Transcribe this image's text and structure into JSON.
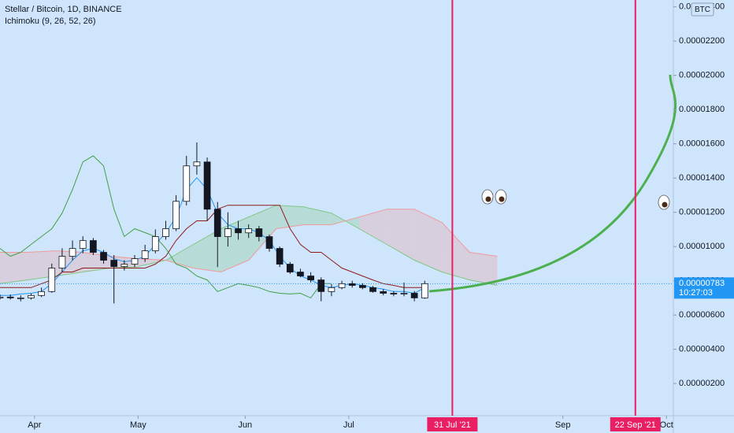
{
  "chart_data": {
    "type": "candlestick",
    "title": "Stellar / Bitcoin, 1D, BINANCE",
    "indicator": "Ichimoku (9, 26, 52, 26)",
    "currency": "BTC",
    "up_color": "#ffffff",
    "down_color": "#131722",
    "xlim": [
      "2021-03-22",
      "2021-10-03"
    ],
    "ylim": [
      1.2e-07,
      2.44e-05
    ],
    "xticks": [
      {
        "value": "2021-04-01",
        "label": "Apr"
      },
      {
        "value": "2021-05-01",
        "label": "May"
      },
      {
        "value": "2021-06-01",
        "label": "Jun"
      },
      {
        "value": "2021-07-01",
        "label": "Jul"
      },
      {
        "value": "2021-09-01",
        "label": "Sep"
      },
      {
        "value": "2021-10-01",
        "label": "Oct"
      }
    ],
    "yticks": [
      {
        "value": 2e-06,
        "label": "0.00000200"
      },
      {
        "value": 4e-06,
        "label": "0.00000400"
      },
      {
        "value": 6e-06,
        "label": "0.00000600"
      },
      {
        "value": 8e-06,
        "label": "0.00000800"
      },
      {
        "value": 1e-05,
        "label": "0.00001000"
      },
      {
        "value": 1.2e-05,
        "label": "0.00001200"
      },
      {
        "value": 1.4e-05,
        "label": "0.00001400"
      },
      {
        "value": 1.6e-05,
        "label": "0.00001600"
      },
      {
        "value": 1.8e-05,
        "label": "0.00001800"
      },
      {
        "value": 2e-05,
        "label": "0.00002000"
      },
      {
        "value": 2.2e-05,
        "label": "0.00002200"
      },
      {
        "value": 2.4e-05,
        "label": "0.00002400"
      }
    ],
    "markers": [
      {
        "value": "2021-07-31",
        "label": "31 Jul '21",
        "color": "#e91e63"
      },
      {
        "value": "2021-09-22",
        "label": "22 Sep '21",
        "color": "#e91e63"
      }
    ],
    "last_price": {
      "value": 7.83e-06,
      "label": "0.00000783"
    },
    "countdown": "10:27:03",
    "x": [
      "2021-03-22",
      "2021-03-25",
      "2021-03-28",
      "2021-03-31",
      "2021-04-03",
      "2021-04-06",
      "2021-04-09",
      "2021-04-12",
      "2021-04-15",
      "2021-04-18",
      "2021-04-21",
      "2021-04-24",
      "2021-04-27",
      "2021-04-30",
      "2021-05-03",
      "2021-05-06",
      "2021-05-09",
      "2021-05-12",
      "2021-05-15",
      "2021-05-18",
      "2021-05-21",
      "2021-05-24",
      "2021-05-27",
      "2021-05-30",
      "2021-06-02",
      "2021-06-05",
      "2021-06-08",
      "2021-06-11",
      "2021-06-14",
      "2021-06-17",
      "2021-06-20",
      "2021-06-23",
      "2021-06-26",
      "2021-06-29",
      "2021-07-02",
      "2021-07-05",
      "2021-07-08",
      "2021-07-11",
      "2021-07-14",
      "2021-07-17",
      "2021-07-20",
      "2021-07-23"
    ],
    "open": [
      7e-06,
      7.05e-06,
      7e-06,
      7e-06,
      7.14e-06,
      7.37e-06,
      8.74e-06,
      9.43e-06,
      9.89e-06,
      1.035e-05,
      9.66e-06,
      9.2e-06,
      8.83e-06,
      8.97e-06,
      9.29e-06,
      9.75e-06,
      1.058e-05,
      1.104e-05,
      1.264e-05,
      1.471e-05,
      1.494e-05,
      1.218e-05,
      1.058e-05,
      1.104e-05,
      1.08e-05,
      1.104e-05,
      1.058e-05,
      9.89e-06,
      8.97e-06,
      8.51e-06,
      8.28e-06,
      8.05e-06,
      7.37e-06,
      7.6e-06,
      7.83e-06,
      7.73e-06,
      7.6e-06,
      7.37e-06,
      7.27e-06,
      7.23e-06,
      7.27e-06,
      7e-06
    ],
    "high": [
      7.2e-06,
      7.2e-06,
      7.15e-06,
      7.25e-06,
      7.6e-06,
      9e-06,
      9.9e-06,
      1.035e-05,
      1.06e-05,
      1.05e-05,
      9.8e-06,
      9.5e-06,
      9.2e-06,
      9.5e-06,
      1.01e-05,
      1.1e-05,
      1.15e-05,
      1.3e-05,
      1.53e-05,
      1.608e-05,
      1.52e-05,
      1.26e-05,
      1.2e-05,
      1.15e-05,
      1.13e-05,
      1.12e-05,
      1.07e-05,
      1e-05,
      9.1e-06,
      8.7e-06,
      8.5e-06,
      8.2e-06,
      7.8e-06,
      8e-06,
      8e-06,
      7.85e-06,
      7.7e-06,
      7.5e-06,
      7.4e-06,
      7.9e-06,
      7.4e-06,
      8e-06
    ],
    "low": [
      6.9e-06,
      6.9e-06,
      6.8e-06,
      6.9e-06,
      7.05e-06,
      7.3e-06,
      8.5e-06,
      9.2e-06,
      9.6e-06,
      9.5e-06,
      9e-06,
      6.68e-06,
      8.6e-06,
      8.8e-06,
      9.1e-06,
      9.6e-06,
      1.04e-05,
      1.09e-05,
      1.24e-05,
      1.42e-05,
      1.15e-05,
      8.8e-06,
      1e-05,
      1.04e-05,
      1.05e-05,
      1.03e-05,
      9.7e-06,
      8.8e-06,
      8.4e-06,
      8.2e-06,
      7.9e-06,
      6.8e-06,
      7.1e-06,
      7.5e-06,
      7.6e-06,
      7.5e-06,
      7.3e-06,
      7.15e-06,
      7.1e-06,
      7.1e-06,
      6.8e-06,
      6.95e-06
    ],
    "close": [
      7.05e-06,
      7e-06,
      7e-06,
      7.14e-06,
      7.37e-06,
      8.74e-06,
      9.43e-06,
      9.89e-06,
      1.035e-05,
      9.66e-06,
      9.2e-06,
      8.83e-06,
      8.97e-06,
      9.29e-06,
      9.75e-06,
      1.058e-05,
      1.104e-05,
      1.264e-05,
      1.471e-05,
      1.494e-05,
      1.218e-05,
      1.058e-05,
      1.104e-05,
      1.08e-05,
      1.104e-05,
      1.058e-05,
      9.89e-06,
      8.97e-06,
      8.51e-06,
      8.28e-06,
      8.05e-06,
      7.37e-06,
      7.6e-06,
      7.83e-06,
      7.73e-06,
      7.6e-06,
      7.37e-06,
      7.27e-06,
      7.23e-06,
      7.27e-06,
      7e-06,
      7.83e-06
    ],
    "series": [
      {
        "color": "#2196f3",
        "values": [
          7.14e-06,
          7.14e-06,
          7.23e-06,
          7.27e-06,
          7.37e-06,
          7.83e-06,
          8.51e-06,
          9.2e-06,
          9.75e-06,
          9.89e-06,
          9.66e-06,
          9.29e-06,
          9.11e-06,
          9.2e-06,
          9.43e-06,
          1.012e-05,
          1.081e-05,
          1.172e-05,
          1.333e-05,
          1.402e-05,
          1.333e-05,
          1.195e-05,
          1.127e-05,
          1.104e-05,
          1.104e-05,
          1.081e-05,
          1.035e-05,
          9.43e-06,
          8.74e-06,
          8.28e-06,
          8.05e-06,
          7.73e-06,
          7.6e-06,
          7.73e-06,
          7.83e-06,
          7.73e-06,
          7.6e-06,
          7.51e-06,
          7.37e-06,
          7.37e-06,
          7.27e-06,
          7.6e-06
        ]
      },
      {
        "color": "#8e1b1b",
        "values": [
          7.6e-06,
          7.6e-06,
          7.6e-06,
          7.6e-06,
          7.83e-06,
          8.05e-06,
          8.51e-06,
          8.51e-06,
          8.74e-06,
          8.74e-06,
          8.74e-06,
          8.74e-06,
          8.74e-06,
          8.74e-06,
          8.74e-06,
          8.97e-06,
          9.43e-06,
          1.035e-05,
          1.104e-05,
          1.15e-05,
          1.15e-05,
          1.218e-05,
          1.241e-05,
          1.241e-05,
          1.241e-05,
          1.241e-05,
          1.241e-05,
          1.241e-05,
          1.104e-05,
          1.012e-05,
          9.66e-06,
          9.66e-06,
          9.2e-06,
          8.74e-06,
          8.51e-06,
          8.28e-06,
          8.05e-06,
          7.83e-06,
          7.73e-06,
          7.6e-06,
          7.6e-06,
          7.6e-06
        ]
      },
      {
        "color": "#43a047",
        "values": [
          9.89e-06,
          9.43e-06,
          9.66e-06,
          1.012e-05,
          1.058e-05,
          1.104e-05,
          1.195e-05,
          1.333e-05,
          1.494e-05,
          1.53e-05,
          1.471e-05,
          1.218e-05,
          1.058e-05,
          1.104e-05,
          1.081e-05,
          1.058e-05,
          9.89e-06,
          8.97e-06,
          8.74e-06,
          8.28e-06,
          8.05e-06,
          7.37e-06,
          7.6e-06,
          7.83e-06,
          7.73e-06,
          7.6e-06,
          7.37e-06,
          7.27e-06,
          7.23e-06,
          7.27e-06,
          7e-06,
          7.83e-06,
          7.83e-06,
          null,
          null,
          null,
          null,
          null,
          null,
          null,
          null,
          null
        ]
      }
    ],
    "cloud": {
      "x": [
        "2021-03-22",
        "2021-03-30",
        "2021-04-07",
        "2021-04-15",
        "2021-04-23",
        "2021-05-01",
        "2021-05-09",
        "2021-05-17",
        "2021-05-25",
        "2021-06-02",
        "2021-06-10",
        "2021-06-18",
        "2021-06-26",
        "2021-07-04",
        "2021-07-12",
        "2021-07-20",
        "2021-07-28",
        "2021-08-05",
        "2021-08-13"
      ],
      "lead_a": [
        7.83e-06,
        8.05e-06,
        8.28e-06,
        8.51e-06,
        8.74e-06,
        8.83e-06,
        9.2e-06,
        1.012e-05,
        1.104e-05,
        1.172e-05,
        1.241e-05,
        1.232e-05,
        1.195e-05,
        1.104e-05,
        1.012e-05,
        9.2e-06,
        8.51e-06,
        8.05e-06,
        7.73e-06
      ],
      "lead_b": [
        9.66e-06,
        9.66e-06,
        9.75e-06,
        9.66e-06,
        9.43e-06,
        9.29e-06,
        9.2e-06,
        8.74e-06,
        8.51e-06,
        9.2e-06,
        1.104e-05,
        1.127e-05,
        1.127e-05,
        1.172e-05,
        1.218e-05,
        1.218e-05,
        1.14e-05,
        9.66e-06,
        9.43e-06
      ],
      "color_a": "#81c784",
      "color_b": "#ef9a9a"
    }
  }
}
